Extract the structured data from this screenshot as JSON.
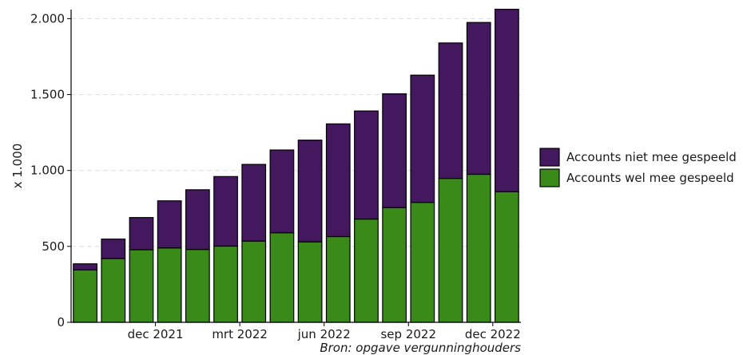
{
  "chart_data": {
    "type": "bar",
    "stacked": true,
    "months": [
      "okt 2021",
      "nov 2021",
      "dec 2021",
      "jan 2022",
      "feb 2022",
      "mrt 2022",
      "apr 2022",
      "mei 2022",
      "jun 2022",
      "jul 2022",
      "aug 2022",
      "sep 2022",
      "okt 2022",
      "nov 2022",
      "dec 2022",
      "jan 2023"
    ],
    "x_tick_labels": [
      {
        "label": "dec 2021",
        "month_index": 2
      },
      {
        "label": "mrt 2022",
        "month_index": 5
      },
      {
        "label": "jun 2022",
        "month_index": 8
      },
      {
        "label": "sep 2022",
        "month_index": 11
      },
      {
        "label": "dec 2022",
        "month_index": 14
      }
    ],
    "series": [
      {
        "name": "Accounts wel mee gespeeld",
        "color": "#3a8a1a",
        "values": [
          345,
          420,
          478,
          490,
          480,
          502,
          535,
          590,
          530,
          565,
          680,
          755,
          790,
          948,
          975,
          860
        ]
      },
      {
        "name": "Accounts niet mee gespeeld",
        "color": "#44185e",
        "values": [
          40,
          128,
          212,
          310,
          393,
          458,
          505,
          545,
          670,
          742,
          712,
          750,
          838,
          892,
          1000,
          1202
        ]
      }
    ],
    "legend_order": [
      "Accounts niet mee gespeeld",
      "Accounts wel mee gespeeld"
    ],
    "legend_position": "right",
    "ylabel": "x 1.000",
    "ylim": [
      0,
      2060
    ],
    "yticks": [
      0,
      500,
      1000,
      1500,
      2000
    ],
    "ytick_labels": [
      "0",
      "500",
      "1.000",
      "1.500",
      "2.000"
    ],
    "grid": "horizontal dashed",
    "grid_color": "#dddddd",
    "bar_outline_color": "#000000",
    "source": "Bron: opgave vergunninghouders"
  }
}
